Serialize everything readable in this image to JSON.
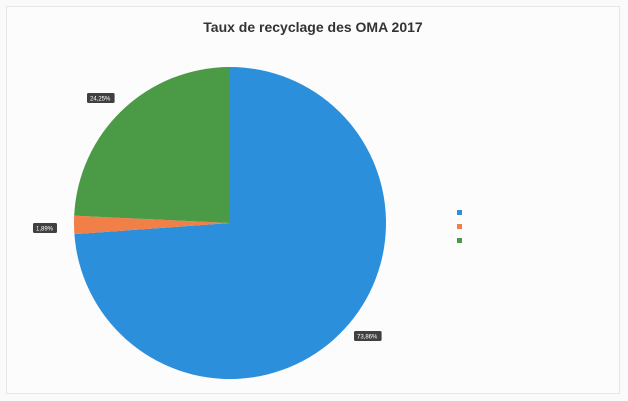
{
  "chart_data": {
    "type": "pie",
    "title": "Taux de recyclage des OMA 2017",
    "slices": [
      {
        "name": "",
        "value": 73.86,
        "label": "73,86%",
        "color": "#2c8fdb"
      },
      {
        "name": "",
        "value": 1.89,
        "label": "1,89%",
        "color": "#f07f48"
      },
      {
        "name": "",
        "value": 24.25,
        "label": "24,25%",
        "color": "#4a9a46"
      }
    ],
    "legend_position": "right"
  }
}
